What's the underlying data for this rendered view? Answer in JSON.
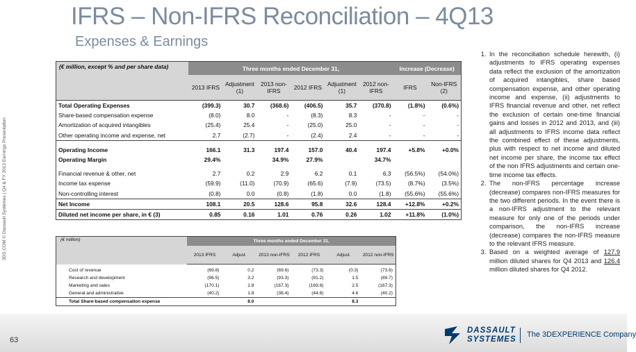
{
  "title": "IFRS – Non-IFRS Reconciliation – 4Q13",
  "subtitle": "Expenses & Earnings",
  "side_note": "3DS.COM © Dassault Systèmes | Q4 & FY 2013 Earnings Presentation",
  "page_number": "63",
  "table1": {
    "unit_label": "(€ million, except % and per share data)",
    "group_headers": [
      "Three months ended December 31,",
      "Increase (Decrease)"
    ],
    "columns": [
      "2013 IFRS",
      "Adjustment (1)",
      "2013 non-IFRS",
      "2012 IFRS",
      "Adjustment (1)",
      "2012 non-IFRS",
      "IFRS",
      "Non-IFRS (2)"
    ],
    "rows": [
      [
        "Total Operating Expenses",
        "(399.3)",
        "30.7",
        "(368.6)",
        "(406.5)",
        "35.7",
        "(370.8)",
        "(1.8%)",
        "(0.6%)"
      ],
      [
        "Share-based compensation expense",
        "(8.0)",
        "8.0",
        "-",
        "(8.3)",
        "8.3",
        "-",
        "-",
        "-"
      ],
      [
        "Amortization of acquired intangibles",
        "(25.4)",
        "25.4",
        "-",
        "(25.0)",
        "25.0",
        "-",
        "-",
        "-"
      ],
      [
        "Other operating income and expense, net",
        "2.7",
        "(2.7)",
        "-",
        "(2.4)",
        "2.4",
        "-",
        "-",
        "-"
      ],
      [
        "Operating Income",
        "166.1",
        "31.3",
        "197.4",
        "157.0",
        "40.4",
        "197.4",
        "+5.8%",
        "+0.0%"
      ],
      [
        "Operating Margin",
        "29.4%",
        null,
        "34.9%",
        "27.9%",
        null,
        "34.7%",
        null,
        null
      ],
      [
        "Financial revenue & other, net",
        "2.7",
        "0.2",
        "2.9",
        "6.2",
        "0.1",
        "6.3",
        "(56.5%)",
        "(54.0%)"
      ],
      [
        "Income tax expense",
        "(59.9)",
        "(11.0)",
        "(70.9)",
        "(65.6)",
        "(7.9)",
        "(73.5)",
        "(8.7%)",
        "(3.5%)"
      ],
      [
        "Non-controlling interest",
        "(0.8)",
        "0.0",
        "(0.8)",
        "(1.8)",
        "0.0",
        "(1.8)",
        "(55.6%)",
        "(55.6%)"
      ],
      [
        "Net Income",
        "108.1",
        "20.5",
        "128.6",
        "95.8",
        "32.6",
        "128.4",
        "+12.8%",
        "+0.2%"
      ],
      [
        "Diluted net income per share, in € (3)",
        "0.85",
        "0.16",
        "1.01",
        "0.76",
        "0.26",
        "1.02",
        "+11.8%",
        "(1.0%)"
      ]
    ]
  },
  "table2": {
    "unit_label": "(€ million)",
    "group_headers": [
      "Three months ended December 31,"
    ],
    "columns": [
      "2013 IFRS",
      "Adjust.",
      "2013 non-IFRS",
      "2012 IFRS",
      "Adjust.",
      "2012 non-IFRS"
    ],
    "rows": [
      [
        "Cost of revenue",
        "(69.8)",
        "0.2",
        "(69.6)",
        "(73.3)",
        "(0.3)",
        "(73.6)"
      ],
      [
        "Research and development",
        "(96.5)",
        "3.2",
        "(93.3)",
        "(91.2)",
        "1.5",
        "(89.7)"
      ],
      [
        "Marketing and sales",
        "(170.1)",
        "2.8",
        "(167.3)",
        "(169.8)",
        "2.5",
        "(167.3)"
      ],
      [
        "General and administrative",
        "(40.2)",
        "1.8",
        "(38.4)",
        "(44.8)",
        "4.6",
        "(40.2)"
      ],
      [
        "Total Share-based compensation expense",
        null,
        "8.0",
        null,
        null,
        "8.3",
        null
      ]
    ]
  },
  "notes": [
    "In the reconciliation schedule herewith, (i) adjustments to IFRS operating expenses data reflect the exclusion of the amortization of acquired intangibles, share based compensation expense, and other operating income and expense, (ii) adjustments to IFRS financial revenue and other, net reflect the exclusion of certain one-time financial gains and losses in 2012 and 2013, and (iii) all adjustments to IFRS income data reflect the combined effect of these adjustments, plus with respect to net income and diluted net income per share, the income tax effect of the non IFRS adjustments and certain one-time income tax effects.",
    "The non-IFRS percentage increase (decrease) compares non-IFRS measures for the two different periods. In the event there is a non-IFRS adjustment to the relevant measure for only one of the periods under comparison, the non-IFRS increase (decrease) compares the non-IFRS measure to the relevant IFRS measure.",
    [
      "Based on a weighted average of ",
      "127.9",
      " million diluted shares for Q4 2013 and ",
      "126.4",
      " million diluted shares for Q4 2012."
    ]
  ],
  "logo": {
    "brand_top": "DASSAULT",
    "brand_bottom": "SYSTEMES",
    "tagline": "The 3DEXPERIENCE Company"
  }
}
